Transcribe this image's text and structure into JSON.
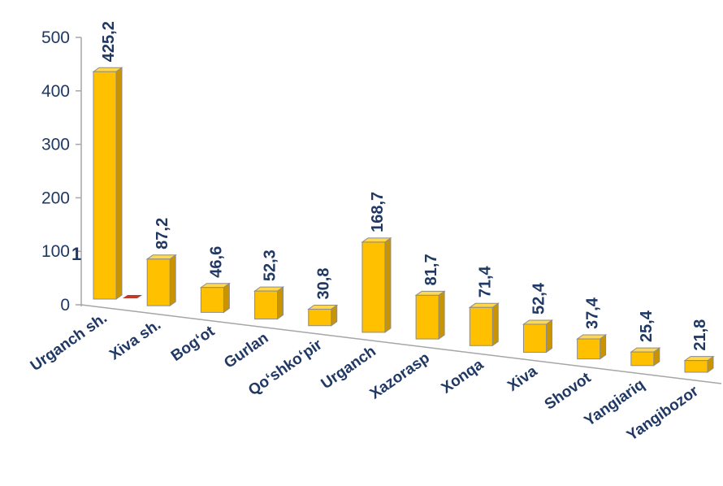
{
  "chart_data": {
    "type": "bar",
    "title": "",
    "xlabel": "",
    "ylabel": "",
    "ylim": [
      0,
      500
    ],
    "yticks": [
      0,
      100,
      200,
      300,
      400,
      500
    ],
    "grid": false,
    "legend": "none",
    "categories": [
      "Urganch sh.",
      "Xiva sh.",
      "Bog‘ot",
      "Gurlan",
      "Qo‘shko‘pir",
      "Urganch",
      "Xazorasp",
      "Xonqa",
      "Xiva",
      "Shovot",
      "Yangiariq",
      "Yangibozor"
    ],
    "values": [
      425.2,
      87.2,
      46.6,
      52.3,
      30.8,
      168.7,
      81.7,
      71.4,
      52.4,
      37.4,
      25.4,
      21.8
    ],
    "data_labels": [
      "425,2",
      "87,2",
      "46,6",
      "52,3",
      "30,8",
      "168,7",
      "81,7",
      "71,4",
      "52,4",
      "37,4",
      "25,4",
      "21,8"
    ],
    "secondary_series": {
      "values": [
        1
      ],
      "data_labels": [
        "1"
      ],
      "color": "#c0392b"
    },
    "colors": {
      "bar_front": "#ffc000",
      "bar_side": "#c99400",
      "bar_top": "#ffd84d",
      "bar_edge": "#8c8c8c",
      "text": "#1f3864",
      "axis": "#a6a6a6"
    }
  }
}
